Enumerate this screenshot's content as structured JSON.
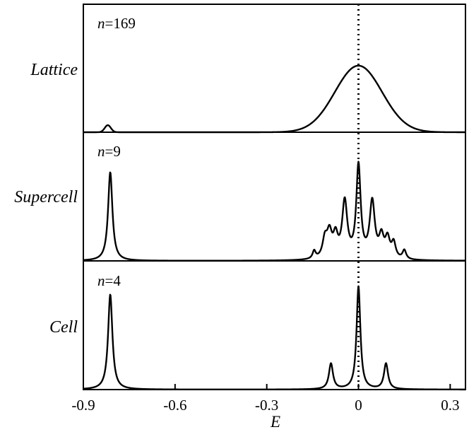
{
  "chart_data": {
    "type": "line",
    "xlabel": "E",
    "xlim": [
      -0.9,
      0.35
    ],
    "xticks": [
      -0.9,
      -0.6,
      -0.3,
      0,
      0.3
    ],
    "xtick_labels": [
      "-0.9",
      "-0.6",
      "-0.3",
      "0",
      "0.3"
    ],
    "reference_line": {
      "x": 0,
      "style": "dotted"
    },
    "panels": [
      {
        "label": "Lattice",
        "n_symbol": "n",
        "n_value": "=169",
        "ylim": [
          0,
          1
        ],
        "peaks": [
          {
            "center": -0.82,
            "height": 0.055,
            "width": 0.01,
            "shape": "gauss"
          },
          {
            "center": 0.0,
            "height": 0.52,
            "width": 0.077,
            "shape": "gauss"
          }
        ]
      },
      {
        "label": "Supercell",
        "n_symbol": "n",
        "n_value": "=9",
        "ylim": [
          0,
          1
        ],
        "peaks": [
          {
            "center": -0.812,
            "height": 0.69,
            "width": 0.0085,
            "shape": "lorentz"
          },
          {
            "center": -0.145,
            "height": 0.06,
            "width": 0.006,
            "shape": "lorentz"
          },
          {
            "center": -0.11,
            "height": 0.14,
            "width": 0.009,
            "shape": "lorentz"
          },
          {
            "center": -0.095,
            "height": 0.19,
            "width": 0.01,
            "shape": "lorentz"
          },
          {
            "center": -0.075,
            "height": 0.16,
            "width": 0.009,
            "shape": "lorentz"
          },
          {
            "center": -0.045,
            "height": 0.44,
            "width": 0.01,
            "shape": "lorentz"
          },
          {
            "center": 0.0,
            "height": 0.72,
            "width": 0.0085,
            "shape": "lorentz"
          },
          {
            "center": 0.045,
            "height": 0.44,
            "width": 0.01,
            "shape": "lorentz"
          },
          {
            "center": 0.075,
            "height": 0.16,
            "width": 0.009,
            "shape": "lorentz"
          },
          {
            "center": 0.095,
            "height": 0.15,
            "width": 0.009,
            "shape": "lorentz"
          },
          {
            "center": 0.115,
            "height": 0.12,
            "width": 0.008,
            "shape": "lorentz"
          },
          {
            "center": 0.15,
            "height": 0.07,
            "width": 0.007,
            "shape": "lorentz"
          }
        ]
      },
      {
        "label": "Cell",
        "n_symbol": "n",
        "n_value": "=4",
        "ylim": [
          0,
          1
        ],
        "peaks": [
          {
            "center": -0.812,
            "height": 0.74,
            "width": 0.0085,
            "shape": "lorentz"
          },
          {
            "center": -0.09,
            "height": 0.2,
            "width": 0.008,
            "shape": "lorentz"
          },
          {
            "center": 0.0,
            "height": 0.8,
            "width": 0.0075,
            "shape": "lorentz"
          },
          {
            "center": 0.09,
            "height": 0.2,
            "width": 0.008,
            "shape": "lorentz"
          }
        ]
      }
    ]
  }
}
